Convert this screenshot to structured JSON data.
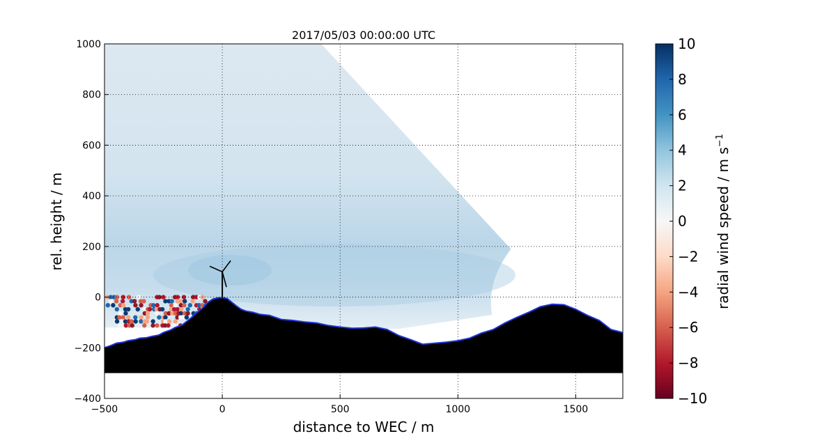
{
  "chart_data": {
    "type": "heatmap",
    "title": "2017/05/03 00:00:00 UTC",
    "xlabel": "distance to WEC / m",
    "ylabel": "rel. height / m",
    "xlim": [
      -500,
      1700
    ],
    "ylim": [
      -400,
      1000
    ],
    "x_ticks": [
      "−500",
      "0",
      "500",
      "1000",
      "1500"
    ],
    "y_ticks": [
      "−400",
      "−200",
      "0",
      "200",
      "400",
      "600",
      "800",
      "1000"
    ],
    "grid": true,
    "colorbar": {
      "label": "radial wind speed / m s",
      "label_superscript": "−1",
      "range": [
        -10,
        10
      ],
      "ticks": [
        "−10",
        "−8",
        "−6",
        "−4",
        "−2",
        "0",
        "2",
        "4",
        "6",
        "8",
        "10"
      ],
      "colormap": "RdBu"
    },
    "terrain_profile": [
      [
        -500,
        -200
      ],
      [
        -470,
        -190
      ],
      [
        -450,
        -182
      ],
      [
        -420,
        -178
      ],
      [
        -400,
        -172
      ],
      [
        -370,
        -168
      ],
      [
        -350,
        -162
      ],
      [
        -320,
        -160
      ],
      [
        -300,
        -155
      ],
      [
        -270,
        -150
      ],
      [
        -250,
        -140
      ],
      [
        -220,
        -130
      ],
      [
        -200,
        -120
      ],
      [
        -170,
        -110
      ],
      [
        -150,
        -95
      ],
      [
        -130,
        -80
      ],
      [
        -100,
        -55
      ],
      [
        -80,
        -40
      ],
      [
        -60,
        -20
      ],
      [
        -40,
        -8
      ],
      [
        -20,
        -3
      ],
      [
        0,
        -2
      ],
      [
        20,
        -5
      ],
      [
        40,
        -20
      ],
      [
        60,
        -35
      ],
      [
        80,
        -48
      ],
      [
        100,
        -55
      ],
      [
        130,
        -60
      ],
      [
        160,
        -68
      ],
      [
        200,
        -72
      ],
      [
        250,
        -88
      ],
      [
        300,
        -92
      ],
      [
        350,
        -98
      ],
      [
        400,
        -102
      ],
      [
        450,
        -112
      ],
      [
        500,
        -118
      ],
      [
        550,
        -123
      ],
      [
        600,
        -122
      ],
      [
        650,
        -118
      ],
      [
        700,
        -128
      ],
      [
        750,
        -152
      ],
      [
        800,
        -168
      ],
      [
        850,
        -186
      ],
      [
        900,
        -182
      ],
      [
        950,
        -178
      ],
      [
        1000,
        -172
      ],
      [
        1050,
        -162
      ],
      [
        1100,
        -142
      ],
      [
        1150,
        -128
      ],
      [
        1200,
        -102
      ],
      [
        1250,
        -80
      ],
      [
        1300,
        -60
      ],
      [
        1350,
        -38
      ],
      [
        1400,
        -28
      ],
      [
        1450,
        -30
      ],
      [
        1500,
        -48
      ],
      [
        1550,
        -72
      ],
      [
        1600,
        -92
      ],
      [
        1650,
        -128
      ],
      [
        1700,
        -140
      ]
    ],
    "scan_sector": {
      "top_left": [
        -500,
        1000
      ],
      "top_right": [
        420,
        1000
      ],
      "upper_edge_end": [
        1225,
        190
      ],
      "arc_bottom": [
        1145,
        -70
      ],
      "lower_edge_end": [
        750,
        -125
      ],
      "description_wind_speed_mostly": [
        1,
        4
      ]
    },
    "wec": {
      "x": 0,
      "hub_height": 100
    }
  }
}
